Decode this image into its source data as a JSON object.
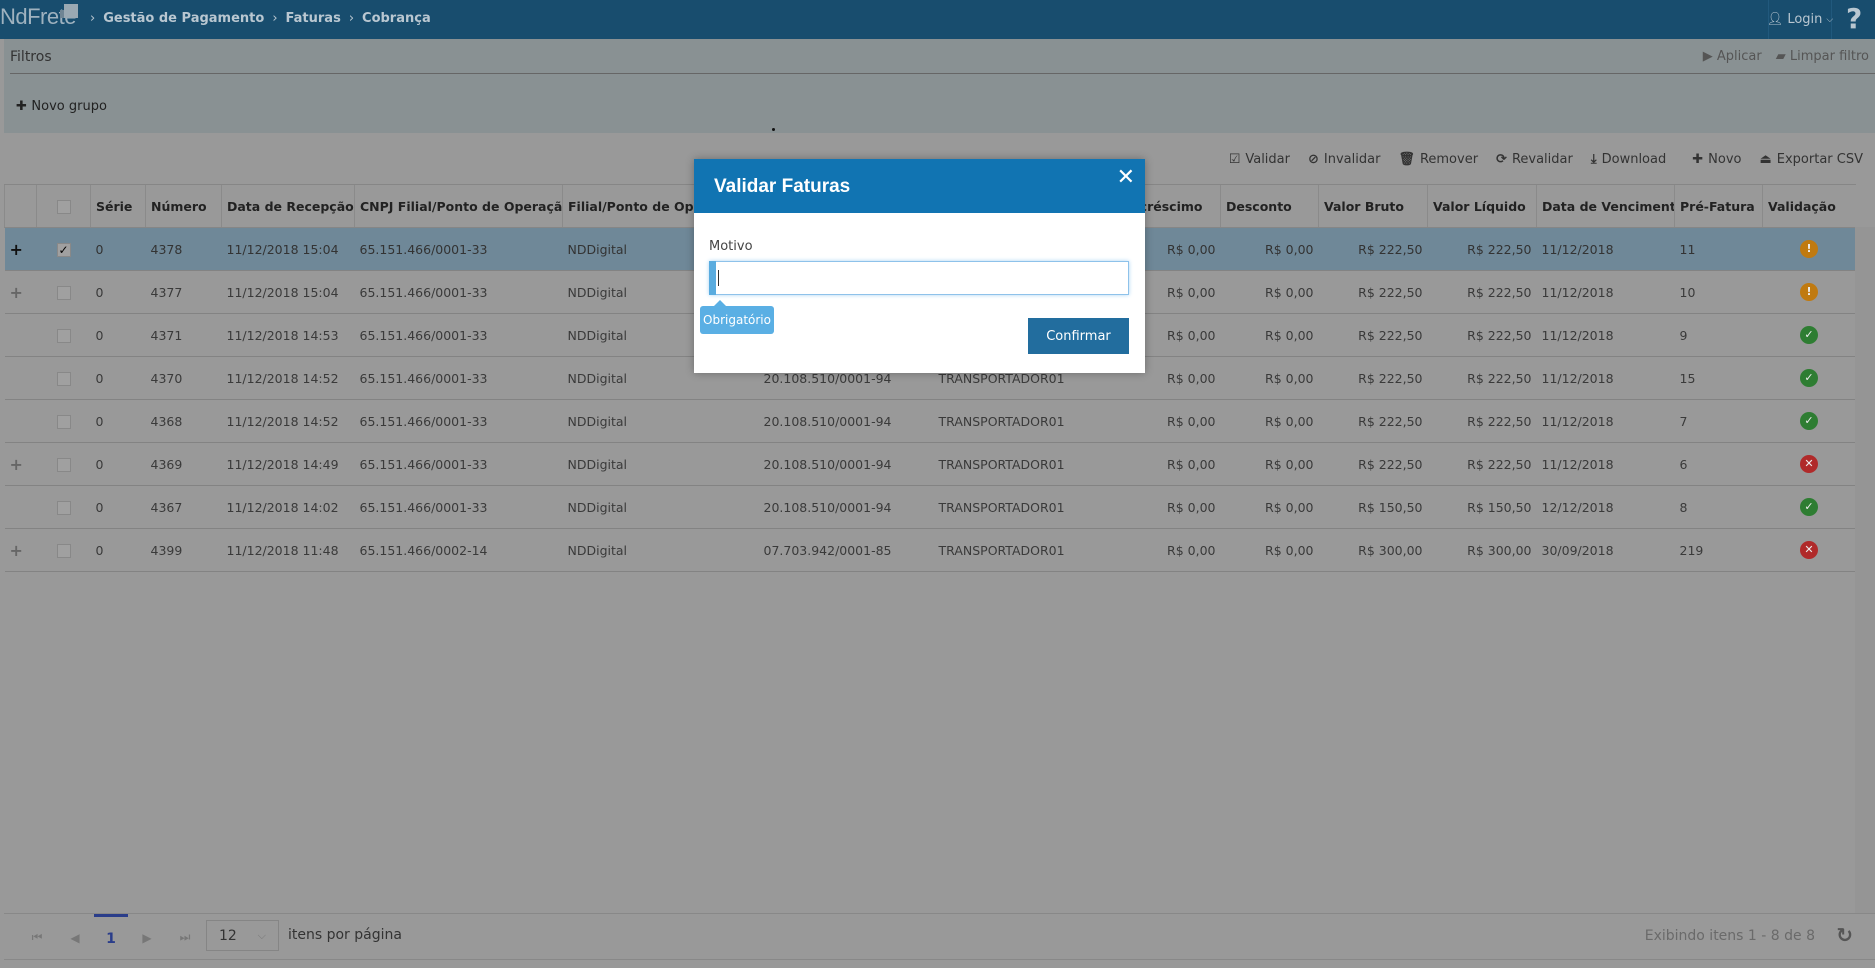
{
  "header": {
    "logo": "NdFrete",
    "breadcrumbs": [
      "Gestão de Pagamento",
      "Faturas",
      "Cobrança"
    ],
    "login_label": "Login",
    "help_label": "?"
  },
  "filters": {
    "title": "Filtros",
    "apply_label": "Aplicar",
    "clear_label": "Limpar filtro",
    "new_group_label": "Novo grupo"
  },
  "toolbar": {
    "validate": "Validar",
    "invalidate": "Invalidar",
    "remove": "Remover",
    "revalidate": "Revalidar",
    "download": "Download",
    "new": "Novo",
    "export_csv": "Exportar CSV"
  },
  "table": {
    "columns": [
      "Série",
      "Número",
      "Data de Recepção ↓",
      "CNPJ Filial/Ponto de Operação",
      "Filial/Ponto de Operação",
      "",
      "",
      "Acréscimo",
      "Desconto",
      "Valor Bruto",
      "Valor Líquido",
      "Data de Vencimento",
      "Pré-Fatura",
      "Validação"
    ],
    "rows": [
      {
        "expand": true,
        "checked": true,
        "selected": true,
        "cells": [
          "0",
          "4378",
          "11/12/2018 15:04",
          "65.151.466/0001-33",
          "NDDigital",
          "",
          "",
          "R$ 0,00",
          "R$ 0,00",
          "R$ 222,50",
          "R$ 222,50",
          "11/12/2018",
          "11"
        ],
        "status": "warning"
      },
      {
        "expand": true,
        "checked": false,
        "selected": false,
        "cells": [
          "0",
          "4377",
          "11/12/2018 15:04",
          "65.151.466/0001-33",
          "NDDigital",
          "",
          "",
          "R$ 0,00",
          "R$ 0,00",
          "R$ 222,50",
          "R$ 222,50",
          "11/12/2018",
          "10"
        ],
        "status": "warning"
      },
      {
        "expand": false,
        "checked": false,
        "selected": false,
        "cells": [
          "0",
          "4371",
          "11/12/2018 14:53",
          "65.151.466/0001-33",
          "NDDigital",
          "",
          "",
          "R$ 0,00",
          "R$ 0,00",
          "R$ 222,50",
          "R$ 222,50",
          "11/12/2018",
          "9"
        ],
        "status": "valid"
      },
      {
        "expand": false,
        "checked": false,
        "selected": false,
        "cells": [
          "0",
          "4370",
          "11/12/2018 14:52",
          "65.151.466/0001-33",
          "NDDigital",
          "20.108.510/0001-94",
          "TRANSPORTADOR01",
          "R$ 0,00",
          "R$ 0,00",
          "R$ 222,50",
          "R$ 222,50",
          "11/12/2018",
          "15"
        ],
        "status": "valid"
      },
      {
        "expand": false,
        "checked": false,
        "selected": false,
        "cells": [
          "0",
          "4368",
          "11/12/2018 14:52",
          "65.151.466/0001-33",
          "NDDigital",
          "20.108.510/0001-94",
          "TRANSPORTADOR01",
          "R$ 0,00",
          "R$ 0,00",
          "R$ 222,50",
          "R$ 222,50",
          "11/12/2018",
          "7"
        ],
        "status": "valid"
      },
      {
        "expand": true,
        "checked": false,
        "selected": false,
        "cells": [
          "0",
          "4369",
          "11/12/2018 14:49",
          "65.151.466/0001-33",
          "NDDigital",
          "20.108.510/0001-94",
          "TRANSPORTADOR01",
          "R$ 0,00",
          "R$ 0,00",
          "R$ 222,50",
          "R$ 222,50",
          "11/12/2018",
          "6"
        ],
        "status": "invalid"
      },
      {
        "expand": false,
        "checked": false,
        "selected": false,
        "cells": [
          "0",
          "4367",
          "11/12/2018 14:02",
          "65.151.466/0001-33",
          "NDDigital",
          "20.108.510/0001-94",
          "TRANSPORTADOR01",
          "R$ 0,00",
          "R$ 0,00",
          "R$ 150,50",
          "R$ 150,50",
          "12/12/2018",
          "8"
        ],
        "status": "valid"
      },
      {
        "expand": true,
        "checked": false,
        "selected": false,
        "cells": [
          "0",
          "4399",
          "11/12/2018 11:48",
          "65.151.466/0002-14",
          "NDDigital",
          "07.703.942/0001-85",
          "TRANSPORTADOR01",
          "R$ 0,00",
          "R$ 0,00",
          "R$ 300,00",
          "R$ 300,00",
          "30/09/2018",
          "219"
        ],
        "status": "invalid"
      }
    ]
  },
  "status_colors": {
    "warning": "#c07a10",
    "valid": "#2e7d32",
    "invalid": "#b02a2a"
  },
  "pagination": {
    "current_page": "1",
    "page_size": "12",
    "page_size_label": "itens por página",
    "info": "Exibindo itens 1 - 8 de 8"
  },
  "modal": {
    "title": "Validar Faturas",
    "field_label": "Motivo",
    "field_value": "",
    "tooltip": "Obrigatório",
    "confirm_label": "Confirmar"
  }
}
